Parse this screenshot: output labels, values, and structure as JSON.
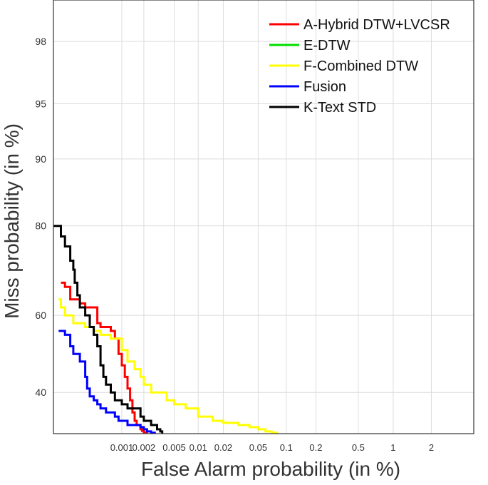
{
  "chart_data": {
    "type": "line",
    "subtype": "DET curve",
    "title": "",
    "xlabel": "False Alarm probability (in %)",
    "ylabel": "Miss probability (in %)",
    "x_scale": "normal-deviate (probit)",
    "y_scale": "normal-deviate (probit)",
    "xlim": [
      0.0001,
      4
    ],
    "ylim": [
      30,
      99
    ],
    "x_ticks": [
      {
        "value": 0.001,
        "label": "0.001"
      },
      {
        "value": 0.002,
        "label": "0.002"
      },
      {
        "value": 0.005,
        "label": "0.005"
      },
      {
        "value": 0.01,
        "label": "0.01"
      },
      {
        "value": 0.02,
        "label": "0.02"
      },
      {
        "value": 0.05,
        "label": "0.05"
      },
      {
        "value": 0.1,
        "label": "0.1"
      },
      {
        "value": 0.2,
        "label": "0.2"
      },
      {
        "value": 0.5,
        "label": "0.5"
      },
      {
        "value": 1,
        "label": "1"
      },
      {
        "value": 2,
        "label": "2"
      }
    ],
    "y_ticks": [
      {
        "value": 40,
        "label": "40"
      },
      {
        "value": 60,
        "label": "60"
      },
      {
        "value": 80,
        "label": "80"
      },
      {
        "value": 90,
        "label": "90"
      },
      {
        "value": 95,
        "label": "95"
      },
      {
        "value": 98,
        "label": "98"
      }
    ],
    "grid": true,
    "legend_position": "top-right",
    "series": [
      {
        "name": "A-Hybrid DTW+LVCSR",
        "color": "#ff0000",
        "points": [
          [
            0.00013,
            68
          ],
          [
            0.00015,
            67
          ],
          [
            0.00018,
            64
          ],
          [
            0.00025,
            63
          ],
          [
            0.0003,
            62
          ],
          [
            0.00035,
            62
          ],
          [
            0.0004,
            62
          ],
          [
            0.00045,
            58
          ],
          [
            0.0005,
            57
          ],
          [
            0.0006,
            57
          ],
          [
            0.0007,
            56
          ],
          [
            0.0008,
            54
          ],
          [
            0.0009,
            50
          ],
          [
            0.001,
            47
          ],
          [
            0.0011,
            44
          ],
          [
            0.0012,
            41
          ],
          [
            0.0013,
            38
          ],
          [
            0.0014,
            35
          ],
          [
            0.0015,
            33
          ],
          [
            0.0016,
            32
          ],
          [
            0.0018,
            31
          ],
          [
            0.0019,
            30.6
          ],
          [
            0.002,
            30.3
          ],
          [
            0.0022,
            30
          ]
        ]
      },
      {
        "name": "E-DTW",
        "color": "#00dd00",
        "points": []
      },
      {
        "name": "F-Combined DTW",
        "color": "#ffff00",
        "points": [
          [
            0.00012,
            64
          ],
          [
            0.00013,
            62
          ],
          [
            0.00015,
            60
          ],
          [
            0.0002,
            58
          ],
          [
            0.0003,
            57
          ],
          [
            0.0004,
            56
          ],
          [
            0.0005,
            55
          ],
          [
            0.0007,
            54
          ],
          [
            0.001,
            51
          ],
          [
            0.0012,
            48
          ],
          [
            0.0015,
            46
          ],
          [
            0.0018,
            44
          ],
          [
            0.002,
            42
          ],
          [
            0.0025,
            40
          ],
          [
            0.003,
            40
          ],
          [
            0.004,
            38
          ],
          [
            0.005,
            37
          ],
          [
            0.007,
            36
          ],
          [
            0.01,
            34
          ],
          [
            0.015,
            33
          ],
          [
            0.02,
            32.5
          ],
          [
            0.03,
            32
          ],
          [
            0.04,
            31.5
          ],
          [
            0.05,
            31
          ],
          [
            0.06,
            30.5
          ],
          [
            0.07,
            30.2
          ],
          [
            0.08,
            30
          ]
        ]
      },
      {
        "name": "Fusion",
        "color": "#0000ff",
        "points": [
          [
            0.00012,
            56
          ],
          [
            0.00015,
            55
          ],
          [
            0.00018,
            52
          ],
          [
            0.0002,
            50
          ],
          [
            0.00025,
            48
          ],
          [
            0.0003,
            44
          ],
          [
            0.00032,
            41
          ],
          [
            0.00035,
            39
          ],
          [
            0.0004,
            38
          ],
          [
            0.00045,
            37
          ],
          [
            0.0005,
            36
          ],
          [
            0.0006,
            35
          ],
          [
            0.0007,
            35
          ],
          [
            0.0008,
            34
          ],
          [
            0.0009,
            33
          ],
          [
            0.001,
            33
          ],
          [
            0.0012,
            32
          ],
          [
            0.0015,
            32
          ],
          [
            0.0018,
            31.5
          ],
          [
            0.002,
            31
          ],
          [
            0.0022,
            30.5
          ],
          [
            0.0025,
            30.2
          ],
          [
            0.0028,
            30
          ]
        ]
      },
      {
        "name": "K-Text STD",
        "color": "#000000",
        "points": [
          [
            0.0001,
            80
          ],
          [
            0.00013,
            78
          ],
          [
            0.00015,
            76
          ],
          [
            0.00018,
            73
          ],
          [
            0.0002,
            71
          ],
          [
            0.00021,
            68
          ],
          [
            0.00023,
            65
          ],
          [
            0.00025,
            62
          ],
          [
            0.0003,
            60
          ],
          [
            0.00035,
            57
          ],
          [
            0.0004,
            55
          ],
          [
            0.00045,
            52
          ],
          [
            0.0005,
            47
          ],
          [
            0.00055,
            44
          ],
          [
            0.0006,
            42
          ],
          [
            0.0007,
            40
          ],
          [
            0.0008,
            38
          ],
          [
            0.001,
            37
          ],
          [
            0.0012,
            36
          ],
          [
            0.0015,
            36
          ],
          [
            0.0018,
            34
          ],
          [
            0.002,
            33
          ],
          [
            0.0025,
            32
          ],
          [
            0.003,
            31
          ],
          [
            0.0033,
            30.5
          ],
          [
            0.0035,
            30
          ]
        ]
      }
    ]
  }
}
